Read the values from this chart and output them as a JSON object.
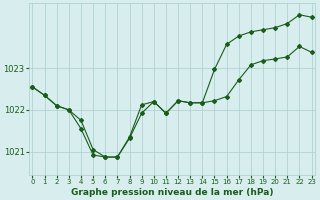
{
  "line1_x": [
    0,
    1,
    2,
    3,
    4,
    5,
    6,
    7,
    8,
    9,
    10,
    11,
    12,
    13,
    14,
    15,
    16,
    17,
    18,
    19,
    20,
    21,
    22,
    23
  ],
  "line1_y": [
    1022.55,
    1022.35,
    1022.1,
    1022.0,
    1021.75,
    1021.05,
    1020.87,
    1020.87,
    1021.32,
    1021.92,
    1022.2,
    1021.92,
    1022.22,
    1022.17,
    1022.17,
    1022.22,
    1022.32,
    1022.72,
    1023.08,
    1023.18,
    1023.22,
    1023.27,
    1023.52,
    1023.38
  ],
  "line2_x": [
    0,
    1,
    2,
    3,
    4,
    5,
    6,
    7,
    8,
    9,
    10,
    11,
    12,
    13,
    14,
    15,
    16,
    17,
    18,
    19,
    20,
    21,
    22,
    23
  ],
  "line2_y": [
    1022.55,
    1022.35,
    1022.1,
    1022.0,
    1021.55,
    1020.92,
    1020.87,
    1020.87,
    1021.35,
    1022.12,
    1022.2,
    1021.92,
    1022.22,
    1022.17,
    1022.17,
    1022.97,
    1023.57,
    1023.77,
    1023.87,
    1023.92,
    1023.97,
    1024.07,
    1024.28,
    1024.22
  ],
  "line_color": "#1a5c1a",
  "bg_color": "#d8eeee",
  "grid_color": "#aacccc",
  "tick_label_color": "#1a5c1a",
  "xlabel": "Graphe pression niveau de la mer (hPa)",
  "yticks": [
    1021,
    1022,
    1023
  ],
  "xticks": [
    0,
    1,
    2,
    3,
    4,
    5,
    6,
    7,
    8,
    9,
    10,
    11,
    12,
    13,
    14,
    15,
    16,
    17,
    18,
    19,
    20,
    21,
    22,
    23
  ],
  "ylim": [
    1020.45,
    1024.55
  ],
  "xlim": [
    -0.3,
    23.3
  ],
  "figsize": [
    3.2,
    2.0
  ],
  "dpi": 100
}
